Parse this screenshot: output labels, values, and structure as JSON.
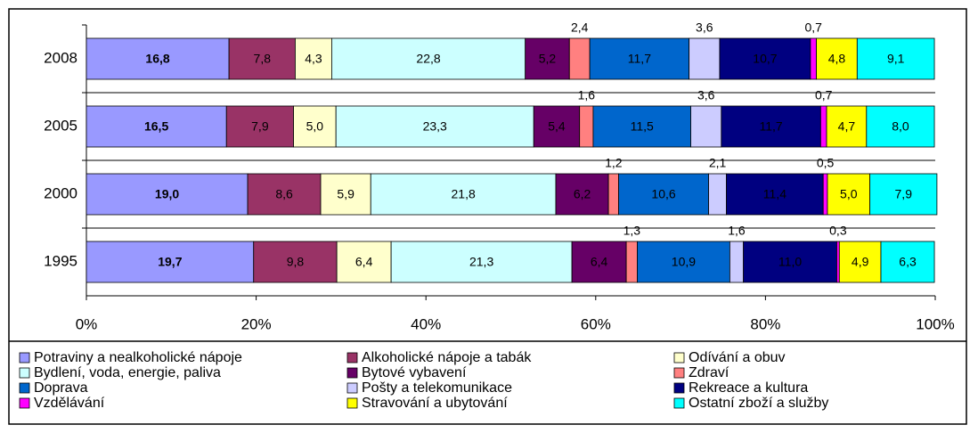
{
  "chart_data": {
    "type": "stacked_barh",
    "categories": [
      "2008",
      "2005",
      "2000",
      "1995"
    ],
    "xlim": [
      0,
      100
    ],
    "xticks": [
      {
        "value": 0,
        "label": "0%"
      },
      {
        "value": 20,
        "label": "20%"
      },
      {
        "value": 40,
        "label": "40%"
      },
      {
        "value": 60,
        "label": "60%"
      },
      {
        "value": 80,
        "label": "80%"
      },
      {
        "value": 100,
        "label": "100%"
      }
    ],
    "legend": "bottom",
    "series": [
      {
        "name": "Potraviny a nealkoholické nápoje",
        "color": "#9999ff",
        "values": [
          16.8,
          16.5,
          19.0,
          19.7
        ],
        "value_labels": [
          "16,8",
          "16,5",
          "19,0",
          "19,7"
        ]
      },
      {
        "name": "Alkoholické nápoje a tabák",
        "color": "#993366",
        "values": [
          7.8,
          7.9,
          8.6,
          9.8
        ],
        "value_labels": [
          "7,8",
          "7,9",
          "8,6",
          "9,8"
        ]
      },
      {
        "name": "Odívání a obuv",
        "color": "#ffffcc",
        "values": [
          4.3,
          5.0,
          5.9,
          6.4
        ],
        "value_labels": [
          "4,3",
          "5,0",
          "5,9",
          "6,4"
        ]
      },
      {
        "name": "Bydlení, voda, energie, paliva",
        "color": "#ccffff",
        "values": [
          22.8,
          23.3,
          21.8,
          21.3
        ],
        "value_labels": [
          "22,8",
          "23,3",
          "21,8",
          "21,3"
        ]
      },
      {
        "name": "Bytové vybavení",
        "color": "#660066",
        "values": [
          5.2,
          5.4,
          6.2,
          6.4
        ],
        "value_labels": [
          "5,2",
          "5,4",
          "6,2",
          "6,4"
        ]
      },
      {
        "name": "Zdraví",
        "color": "#ff8080",
        "values": [
          2.4,
          1.6,
          1.2,
          1.3
        ],
        "value_labels": [
          "2,4",
          "1,6",
          "1,2",
          "1,3"
        ]
      },
      {
        "name": "Doprava",
        "color": "#0066cc",
        "values": [
          11.7,
          11.5,
          10.6,
          10.9
        ],
        "value_labels": [
          "11,7",
          "11,5",
          "10,6",
          "10,9"
        ]
      },
      {
        "name": "Pošty a telekomunikace",
        "color": "#ccccff",
        "values": [
          3.6,
          3.6,
          2.1,
          1.6
        ],
        "value_labels": [
          "3,6",
          "3,6",
          "2,1",
          "1,6"
        ]
      },
      {
        "name": "Rekreace a kultura",
        "color": "#000080",
        "values": [
          10.7,
          11.7,
          11.4,
          11.0
        ],
        "value_labels": [
          "10,7",
          "11,7",
          "11,4",
          "11,0"
        ]
      },
      {
        "name": "Vzdělávání",
        "color": "#ff00ff",
        "values": [
          0.7,
          0.7,
          0.5,
          0.3
        ],
        "value_labels": [
          "0,7",
          "0,7",
          "0,5",
          "0,3"
        ]
      },
      {
        "name": "Stravování a ubytování",
        "color": "#ffff00",
        "values": [
          4.8,
          4.7,
          5.0,
          4.9
        ],
        "value_labels": [
          "4,8",
          "4,7",
          "5,0",
          "4,9"
        ]
      },
      {
        "name": "Ostatní zboží a služby",
        "color": "#00ffff",
        "values": [
          9.1,
          8.0,
          7.9,
          6.3
        ],
        "value_labels": [
          "9,1",
          "8,0",
          "7,9",
          "6,3"
        ]
      }
    ]
  }
}
